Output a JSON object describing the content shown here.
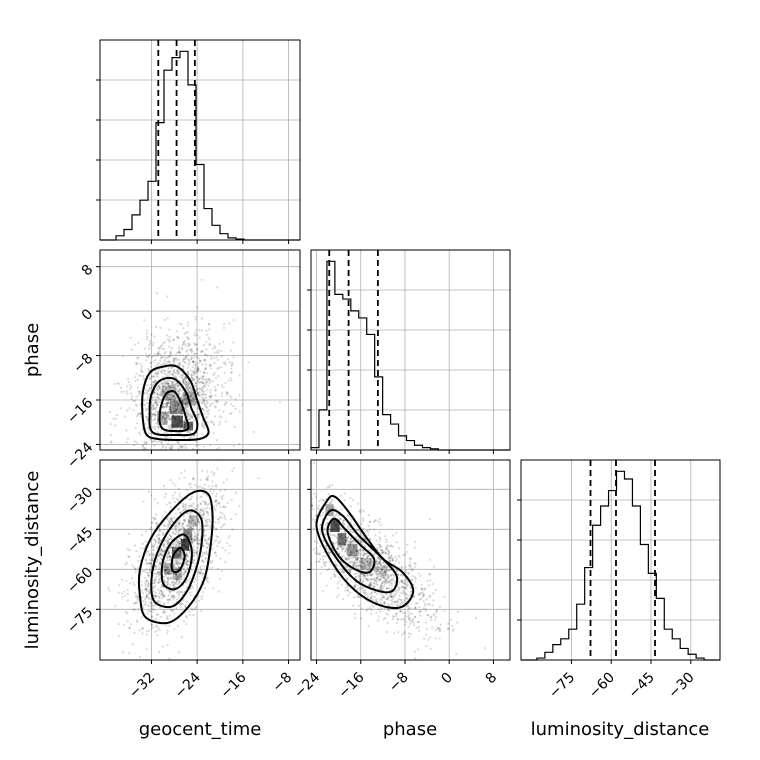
{
  "chart_data": {
    "type": "corner",
    "parameters": [
      {
        "name": "geocent_time",
        "label": "geocent_time",
        "range": [
          -41,
          -6
        ],
        "ticks": [
          -32,
          -24,
          -16,
          -8
        ],
        "tick_labels": [
          "−32",
          "−24",
          "−16",
          "−8"
        ],
        "quantiles": [
          -30.8,
          -27.6,
          -24.4
        ],
        "hist": {
          "edges": [
            -41,
            -39.6,
            -38.2,
            -36.8,
            -35.4,
            -34,
            -32.6,
            -31.2,
            -29.8,
            -28.4,
            -27,
            -25.6,
            -24.2,
            -22.8,
            -21.4,
            -20,
            -18.6,
            -17.2,
            -15.8,
            -14.4,
            -13,
            -11.6,
            -10.2,
            -8.8,
            -7.4,
            -6
          ],
          "counts": [
            0,
            0,
            2,
            5,
            12,
            19,
            28,
            56,
            81,
            87,
            90,
            74,
            36,
            15,
            7,
            3,
            1,
            0.4,
            0,
            0,
            0,
            0,
            0,
            0,
            0
          ]
        }
      },
      {
        "name": "phase",
        "label": "phase",
        "range": [
          -25,
          11
        ],
        "ticks": [
          -24,
          -16,
          -8,
          0,
          8
        ],
        "tick_labels": [
          "−24",
          "−16",
          "−8",
          "0",
          "8"
        ],
        "quantiles": [
          -21.7,
          -18.2,
          -12.9
        ],
        "hist": {
          "edges": [
            -25,
            -23.56,
            -22.12,
            -20.68,
            -19.24,
            -17.8,
            -16.36,
            -14.92,
            -13.48,
            -12.04,
            -10.6,
            -9.16,
            -7.72,
            -6.28,
            -4.84,
            -3.4,
            -1.96,
            -0.52,
            0.92,
            2.36,
            3.8,
            5.24,
            6.68,
            8.12,
            9.56,
            11
          ],
          "counts": [
            1,
            17,
            80,
            66,
            64,
            59,
            56,
            49,
            31,
            15,
            11,
            6,
            4,
            2,
            1,
            0.5,
            0,
            0,
            0,
            0,
            0,
            0,
            0,
            0,
            0
          ]
        }
      },
      {
        "name": "luminosity_distance",
        "label": "luminosity_distance",
        "range": [
          -94,
          -19
        ],
        "ticks": [
          -75,
          -60,
          -45,
          -30
        ],
        "tick_labels": [
          "−75",
          "−60",
          "−45",
          "−30"
        ],
        "quantiles": [
          -67.8,
          -58.2,
          -43.5
        ],
        "hist": {
          "edges": [
            -94,
            -91,
            -88,
            -85,
            -82,
            -79,
            -76,
            -73,
            -70,
            -67,
            -64,
            -61,
            -58,
            -55,
            -52,
            -49,
            -46,
            -43,
            -40,
            -37,
            -34,
            -31,
            -28,
            -25,
            -22,
            -19
          ],
          "counts": [
            0,
            0,
            1,
            4,
            8,
            11,
            16,
            29,
            48,
            70,
            80,
            88,
            98,
            94,
            80,
            60,
            45,
            32,
            16,
            11,
            6,
            3,
            1,
            0,
            0
          ]
        }
      }
    ],
    "pairs": [
      {
        "x": "geocent_time",
        "y": "phase",
        "contours": [
          [
            [
              -33,
              -22
            ],
            [
              -33.6,
              -18
            ],
            [
              -33.4,
              -14
            ],
            [
              -32.2,
              -11
            ],
            [
              -30,
              -10
            ],
            [
              -27.5,
              -10
            ],
            [
              -25.2,
              -12.5
            ],
            [
              -24,
              -16
            ],
            [
              -23,
              -19
            ],
            [
              -22,
              -21.8
            ],
            [
              -23.5,
              -23
            ],
            [
              -27,
              -23.2
            ],
            [
              -31,
              -23
            ]
          ],
          [
            [
              -31.8,
              -21.8
            ],
            [
              -32.3,
              -18
            ],
            [
              -32,
              -15
            ],
            [
              -30.5,
              -12.5
            ],
            [
              -28,
              -12.2
            ],
            [
              -26,
              -14.5
            ],
            [
              -25,
              -17.5
            ],
            [
              -24,
              -20
            ],
            [
              -24.5,
              -22
            ],
            [
              -27.5,
              -22.3
            ]
          ],
          [
            [
              -30.2,
              -21
            ],
            [
              -30.5,
              -18
            ],
            [
              -29.5,
              -15
            ],
            [
              -28,
              -14.5
            ],
            [
              -26.8,
              -16.5
            ],
            [
              -26,
              -19
            ],
            [
              -25.6,
              -21.2
            ],
            [
              -27.8,
              -21.6
            ]
          ]
        ]
      },
      {
        "x": "geocent_time",
        "y": "luminosity_distance",
        "contours": [
          [
            [
              -33,
              -78
            ],
            [
              -34,
              -70
            ],
            [
              -34,
              -60
            ],
            [
              -32,
              -48
            ],
            [
              -28,
              -37
            ],
            [
              -24.5,
              -31
            ],
            [
              -22,
              -32
            ],
            [
              -21.3,
              -40
            ],
            [
              -21.7,
              -52
            ],
            [
              -22.8,
              -64
            ],
            [
              -25.5,
              -74
            ],
            [
              -29,
              -80
            ]
          ],
          [
            [
              -31.5,
              -72
            ],
            [
              -32,
              -64
            ],
            [
              -31,
              -54
            ],
            [
              -28.5,
              -44
            ],
            [
              -25.5,
              -38
            ],
            [
              -23.3,
              -41
            ],
            [
              -23.2,
              -50
            ],
            [
              -24.2,
              -60
            ],
            [
              -26,
              -69
            ],
            [
              -28.5,
              -74
            ]
          ],
          [
            [
              -30,
              -65
            ],
            [
              -30,
              -57
            ],
            [
              -28.5,
              -50
            ],
            [
              -26.3,
              -47
            ],
            [
              -25,
              -52
            ],
            [
              -25.2,
              -59
            ],
            [
              -26.4,
              -65
            ],
            [
              -28.2,
              -67.5
            ]
          ],
          [
            [
              -28.4,
              -60
            ],
            [
              -28.2,
              -55
            ],
            [
              -27,
              -52
            ],
            [
              -26.2,
              -54.5
            ],
            [
              -26.6,
              -58.5
            ],
            [
              -27.5,
              -61
            ]
          ]
        ]
      },
      {
        "x": "phase",
        "y": "luminosity_distance",
        "contours": [
          [
            [
              -24,
              -44
            ],
            [
              -22,
              -34
            ],
            [
              -20.5,
              -33
            ],
            [
              -18,
              -39
            ],
            [
              -15,
              -48
            ],
            [
              -12,
              -56
            ],
            [
              -8.5,
              -61
            ],
            [
              -6.5,
              -68
            ],
            [
              -8.5,
              -74
            ],
            [
              -12.5,
              -73.5
            ],
            [
              -17,
              -68
            ],
            [
              -21,
              -58
            ]
          ],
          [
            [
              -23,
              -45
            ],
            [
              -21.5,
              -38
            ],
            [
              -19.2,
              -40
            ],
            [
              -16.5,
              -47
            ],
            [
              -13,
              -54
            ],
            [
              -9.6,
              -62
            ],
            [
              -10.2,
              -68
            ],
            [
              -13,
              -68
            ],
            [
              -17,
              -64
            ],
            [
              -21,
              -54
            ]
          ],
          [
            [
              -22,
              -46
            ],
            [
              -20.8,
              -41
            ],
            [
              -18.8,
              -45
            ],
            [
              -16,
              -51
            ],
            [
              -13.6,
              -56
            ],
            [
              -14.4,
              -61
            ],
            [
              -17,
              -60
            ],
            [
              -20,
              -55
            ]
          ]
        ]
      }
    ],
    "grid": true
  }
}
